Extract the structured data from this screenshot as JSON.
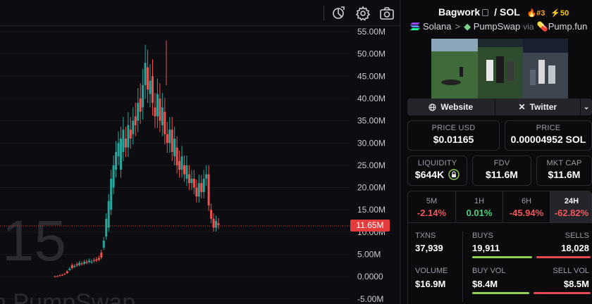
{
  "chart": {
    "y_ticks": [
      "55.00M",
      "50.00M",
      "45.00M",
      "40.00M",
      "35.00M",
      "30.00M",
      "25.00M",
      "20.00M",
      "15.00M",
      "10.00M",
      "5.00M",
      "0.0000",
      "-5.00M"
    ],
    "current_price_label": "11.65M",
    "watermark_big": ",15",
    "watermark_small": "n PumpSwap",
    "colors": {
      "up": "#26a69a",
      "down": "#ef5350",
      "price_line": "#e43c3c"
    },
    "icons": [
      "replay-icon",
      "settings-gear-icon",
      "camera-icon"
    ]
  },
  "token": {
    "name": "Bagwork",
    "quote": "SOL",
    "rank": "#3",
    "boosts": "50",
    "chain": "Solana",
    "dex": "PumpSwap",
    "via_label": "via",
    "launchpad": "Pump.fun"
  },
  "links": {
    "website": "Website",
    "twitter": "Twitter"
  },
  "prices": {
    "price_usd_label": "PRICE USD",
    "price_usd": "$0.01165",
    "price_sol_label": "PRICE",
    "price_sol": "0.00004952 SOL"
  },
  "metrics": {
    "liquidity_label": "LIQUIDITY",
    "liquidity": "$644K",
    "fdv_label": "FDV",
    "fdv": "$11.6M",
    "mktcap_label": "MKT CAP",
    "mktcap": "$11.6M"
  },
  "timeframes": [
    {
      "label": "5M",
      "change": "-2.14%",
      "color": "#f0585b"
    },
    {
      "label": "1H",
      "change": "0.01%",
      "color": "#4fd180"
    },
    {
      "label": "6H",
      "change": "-45.94%",
      "color": "#f0585b"
    },
    {
      "label": "24H",
      "change": "-62.82%",
      "color": "#f0585b"
    }
  ],
  "activity": {
    "txns_label": "TXNS",
    "txns": "37,939",
    "buys_label": "BUYS",
    "buys": "19,911",
    "sells_label": "SELLS",
    "sells": "18,028",
    "buys_fraction": 0.525,
    "volume_label": "VOLUME",
    "volume": "$16.9M",
    "buy_vol_label": "BUY VOL",
    "buy_vol": "$8.4M",
    "sell_vol_label": "SELL VOL",
    "sell_vol": "$8.5M",
    "buy_vol_fraction": 0.497,
    "buy_color": "#8fd14f",
    "sell_color": "#e5484d"
  }
}
